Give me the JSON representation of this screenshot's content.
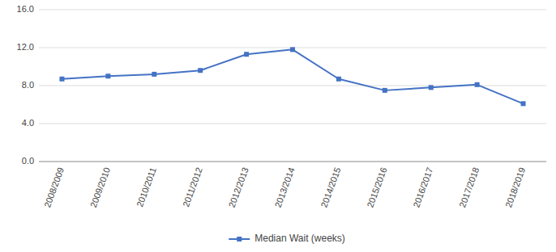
{
  "chart_data": {
    "type": "line",
    "categories": [
      "2008/2009",
      "2009/2010",
      "2010/2011",
      "2011/2012",
      "2012/2013",
      "2013/2014",
      "2014/2015",
      "2015/2016",
      "2016/2017",
      "2017/2018",
      "2018/2019"
    ],
    "series": [
      {
        "name": "Median Wait (weeks)",
        "color": "#4472C4",
        "marker": "square",
        "line_style": "solid",
        "values": [
          8.7,
          9.0,
          9.2,
          9.6,
          11.3,
          11.8,
          8.7,
          7.5,
          7.8,
          8.1,
          6.1
        ]
      }
    ],
    "ylim": [
      0,
      16
    ],
    "yticks": [
      {
        "value": 0.0,
        "label": "0.0"
      },
      {
        "value": 4.0,
        "label": "4.0"
      },
      {
        "value": 8.0,
        "label": "8.0"
      },
      {
        "value": 12.0,
        "label": "12.0"
      },
      {
        "value": 16.0,
        "label": "16.0"
      }
    ],
    "grid": true,
    "legend": "bottom"
  }
}
